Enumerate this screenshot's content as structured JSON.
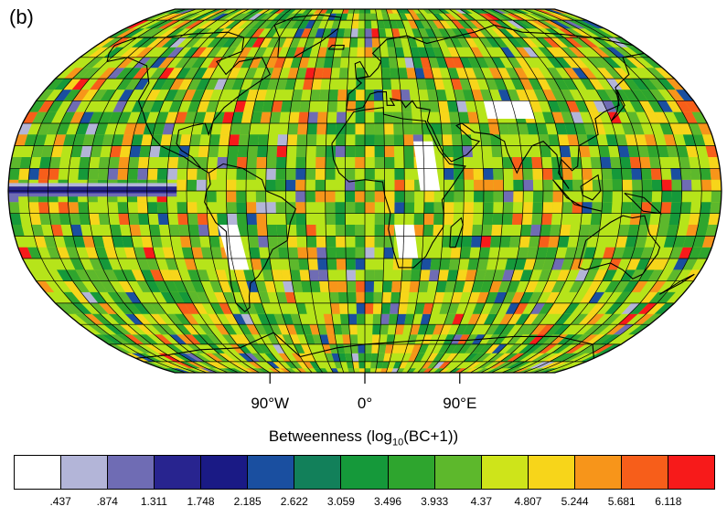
{
  "panel_label": "(b)",
  "map": {
    "projection": "Robinson",
    "field": "Betweenness",
    "longitude_labels": [
      "90°W",
      "0°",
      "90°E"
    ],
    "longitude_label_values": [
      -90,
      0,
      90
    ],
    "graticule_spacing_deg": 10,
    "ocean_background_color": "#b6e41a"
  },
  "colorbar": {
    "title_prefix": "Betweenness (log",
    "title_subscript": "10",
    "title_suffix": "(BC+1))",
    "colors": [
      "#ffffff",
      "#b3b5d8",
      "#6f6cb4",
      "#28248f",
      "#1a1a85",
      "#1a4fa0",
      "#12805a",
      "#15993a",
      "#2ea52e",
      "#5db82c",
      "#cee41a",
      "#f7d51a",
      "#f7951a",
      "#f75e1a",
      "#f71a1a"
    ],
    "tick_labels": [
      ".437",
      ".874",
      "1.311",
      "1.748",
      "2.185",
      "2.622",
      "3.059",
      "3.496",
      "3.933",
      "4.37",
      "4.807",
      "5.244",
      "5.681",
      "6.118"
    ]
  }
}
